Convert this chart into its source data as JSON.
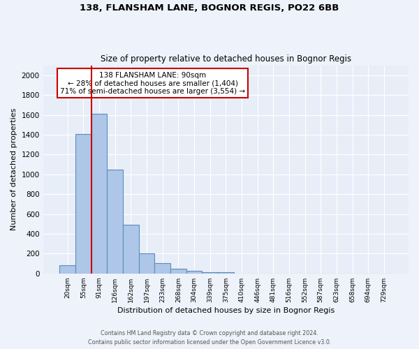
{
  "title1": "138, FLANSHAM LANE, BOGNOR REGIS, PO22 6BB",
  "title2": "Size of property relative to detached houses in Bognor Regis",
  "xlabel": "Distribution of detached houses by size in Bognor Regis",
  "ylabel": "Number of detached properties",
  "footnote1": "Contains HM Land Registry data © Crown copyright and database right 2024.",
  "footnote2": "Contains public sector information licensed under the Open Government Licence v3.0.",
  "categories": [
    "20sqm",
    "55sqm",
    "91sqm",
    "126sqm",
    "162sqm",
    "197sqm",
    "233sqm",
    "268sqm",
    "304sqm",
    "339sqm",
    "375sqm",
    "410sqm",
    "446sqm",
    "481sqm",
    "516sqm",
    "552sqm",
    "587sqm",
    "623sqm",
    "658sqm",
    "694sqm",
    "729sqm"
  ],
  "values": [
    80,
    1410,
    1610,
    1050,
    490,
    205,
    105,
    45,
    25,
    15,
    12,
    0,
    0,
    0,
    0,
    0,
    0,
    0,
    0,
    0,
    0
  ],
  "bar_color": "#aec6e8",
  "bar_edge_color": "#5b8db8",
  "bg_color": "#e8eef8",
  "grid_color": "#ffffff",
  "vline_color": "#cc0000",
  "annotation_text": "138 FLANSHAM LANE: 90sqm\n← 28% of detached houses are smaller (1,404)\n71% of semi-detached houses are larger (3,554) →",
  "annotation_box_color": "#ffffff",
  "annotation_box_edge": "#cc0000",
  "ylim": [
    0,
    2100
  ],
  "yticks": [
    0,
    200,
    400,
    600,
    800,
    1000,
    1200,
    1400,
    1600,
    1800,
    2000
  ],
  "fig_bg": "#eef2fa"
}
